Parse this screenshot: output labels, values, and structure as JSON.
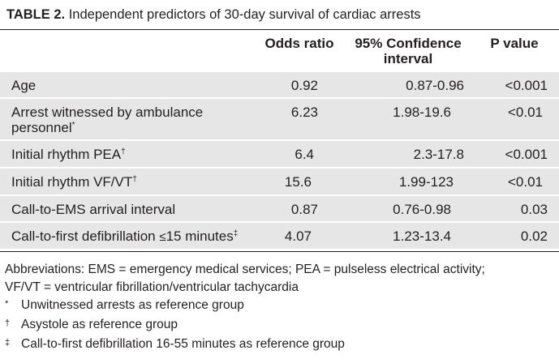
{
  "title": {
    "label": "TABLE 2.",
    "text": "Independent predictors of 30-day survival of cardiac arrests"
  },
  "header": {
    "odds": "Odds ratio",
    "ci_line1": "95% Confidence",
    "ci_line2": "interval",
    "p": "P value"
  },
  "rows": [
    {
      "label": "Age",
      "sup": "",
      "odds": "0.92",
      "ci": "0.87-0.96",
      "p": "<0.001"
    },
    {
      "label_line1": "Arrest witnessed by ambulance",
      "label_line2": "personnel",
      "sup": "*",
      "odds": "6.23",
      "ci": "1.98-19.6",
      "p": "<0.01"
    },
    {
      "label": "Initial rhythm PEA",
      "sup": "†",
      "odds": "6.4",
      "ci": "2.3-17.8",
      "p": "<0.001"
    },
    {
      "label": "Initial rhythm VF/VT",
      "sup": "†",
      "odds": "15.6",
      "ci": "1.99-123",
      "p": "<0.01"
    },
    {
      "label": "Call-to-EMS arrival interval",
      "sup": "",
      "odds": "0.87",
      "ci": "0.76-0.98",
      "p": "0.03"
    },
    {
      "label_pre": "Call-to-first defibrillation ",
      "leq": "≤",
      "label_post": "15 minutes",
      "sup": "‡",
      "odds": "4.07",
      "ci": "1.23-13.4",
      "p": "0.02"
    }
  ],
  "notes": {
    "abbr_line1": "Abbreviations: EMS = emergency medical services; PEA = pulseless electrical activity;",
    "abbr_line2": "VF/VT = ventricular fibrillation/ventricular tachycardia",
    "footnotes": [
      {
        "mark": "*",
        "text": "Unwitnessed arrests as reference group"
      },
      {
        "mark": "†",
        "text": "Asystole as reference group"
      },
      {
        "mark": "‡",
        "text": "Call-to-first defibrillation 16-55 minutes as reference group"
      }
    ]
  }
}
